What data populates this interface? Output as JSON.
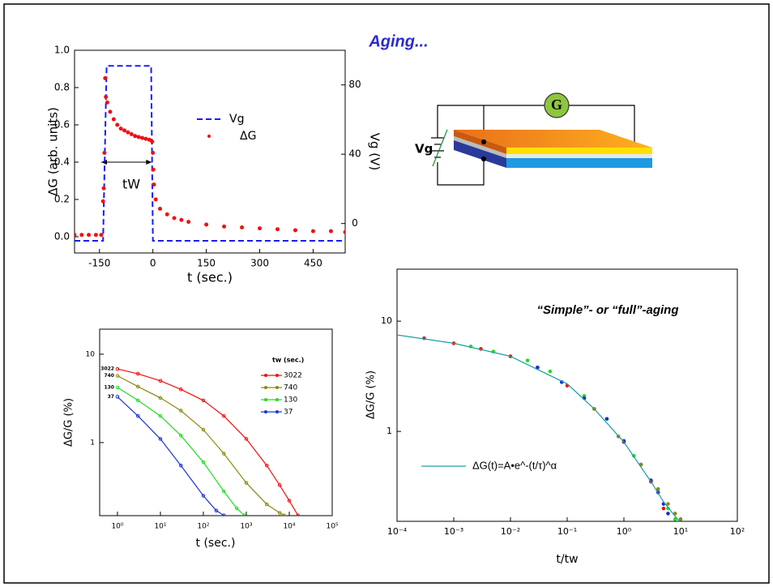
{
  "title": "Aging...",
  "diagram": {
    "meter": "G",
    "gate_label": "Vg"
  },
  "chart_data": [
    {
      "type": "line",
      "xlabel": "t (sec.)",
      "ylabel": "ΔG (arb. units)",
      "y2label": "Vg (V)",
      "xlim": [
        -220,
        540
      ],
      "xticks": [
        {
          "value": -150,
          "label": "-150"
        },
        0,
        150,
        300,
        450
      ],
      "ylim": [
        -0.087,
        1.0
      ],
      "yticks": [
        {
          "value": 0,
          "label": "0.0"
        },
        0.2,
        0.4,
        0.6,
        0.8,
        {
          "value": 1,
          "label": "1.0"
        }
      ],
      "y2lim": [
        -17,
        100
      ],
      "y2ticks": [
        0,
        40,
        80
      ],
      "annotation": "tW",
      "series": [
        {
          "name": "Vg",
          "color": "#1a1aff",
          "style": "dashed",
          "axis": "y2",
          "x": [
            -220,
            -140,
            -130,
            -5,
            0,
            540
          ],
          "values": [
            -10,
            -10,
            91,
            91,
            -10,
            -10
          ]
        },
        {
          "name": "ΔG",
          "color": "#ee1111",
          "style": "dots",
          "x": [
            -220,
            -200,
            -180,
            -160,
            -145,
            -140,
            -138,
            -136,
            -134,
            -132,
            -128,
            -120,
            -110,
            -100,
            -90,
            -80,
            -70,
            -60,
            -50,
            -40,
            -30,
            -20,
            -10,
            -2,
            0,
            1,
            3,
            8,
            20,
            40,
            60,
            80,
            100,
            150,
            200,
            250,
            300,
            350,
            400,
            450,
            500,
            540
          ],
          "values": [
            0.01,
            0.01,
            0.01,
            0.01,
            0.01,
            0.19,
            0.26,
            0.45,
            0.85,
            0.75,
            0.72,
            0.67,
            0.63,
            0.6,
            0.58,
            0.57,
            0.56,
            0.55,
            0.54,
            0.535,
            0.53,
            0.525,
            0.52,
            0.51,
            0.45,
            0.36,
            0.28,
            0.2,
            0.15,
            0.12,
            0.1,
            0.09,
            0.08,
            0.065,
            0.055,
            0.05,
            0.045,
            0.04,
            0.035,
            0.03,
            0.03,
            0.025
          ]
        }
      ]
    },
    {
      "type": "line",
      "xlabel": "t (sec.)",
      "ylabel": "ΔG/G (%)",
      "xscale": "log",
      "yscale": "log",
      "xlim": [
        0.385,
        100000
      ],
      "xticks": [
        {
          "value": 1,
          "label": "10⁰"
        },
        {
          "value": 10,
          "label": "10¹"
        },
        {
          "value": 100,
          "label": "10²"
        },
        {
          "value": 1000,
          "label": "10³"
        },
        {
          "value": 10000,
          "label": "10⁴"
        },
        {
          "value": 100000,
          "label": "10⁵"
        }
      ],
      "ylim": [
        0.149,
        19.2
      ],
      "yticks": [
        1,
        10
      ],
      "legend_title": "tw (sec.)",
      "series": [
        {
          "name": "3022",
          "color": "#ee1111",
          "style": "line-markers",
          "x": [
            1,
            3,
            10,
            30,
            100,
            300,
            1000,
            3000,
            6000,
            10000,
            16000
          ],
          "values": [
            6.8,
            6.0,
            5.0,
            4.0,
            3.0,
            2.0,
            1.1,
            0.55,
            0.33,
            0.22,
            0.15
          ]
        },
        {
          "name": "740",
          "color": "#8a8a10",
          "style": "line-markers",
          "x": [
            1,
            3,
            10,
            30,
            100,
            300,
            1000,
            3000,
            6000,
            7500
          ],
          "values": [
            5.7,
            4.3,
            3.2,
            2.3,
            1.4,
            0.75,
            0.35,
            0.2,
            0.16,
            0.15
          ]
        },
        {
          "name": "130",
          "color": "#22dd22",
          "style": "line-markers",
          "x": [
            1,
            3,
            10,
            30,
            100,
            300,
            600,
            900
          ],
          "values": [
            4.2,
            3.0,
            2.0,
            1.2,
            0.6,
            0.28,
            0.18,
            0.15
          ]
        },
        {
          "name": "37",
          "color": "#2233cc",
          "style": "line-markers",
          "x": [
            1,
            3,
            10,
            30,
            100,
            200,
            300
          ],
          "values": [
            3.3,
            2.0,
            1.1,
            0.55,
            0.25,
            0.17,
            0.15
          ]
        }
      ]
    },
    {
      "type": "scatter",
      "xlabel": "t/tw",
      "ylabel": "ΔG/G (%)",
      "xscale": "log",
      "yscale": "log",
      "xlim": [
        0.0001,
        100
      ],
      "xticks": [
        {
          "value": 0.0001,
          "label": "10⁻⁴"
        },
        {
          "value": 0.001,
          "label": "10⁻³"
        },
        {
          "value": 0.01,
          "label": "10⁻²"
        },
        {
          "value": 0.1,
          "label": "10⁻¹"
        },
        {
          "value": 1,
          "label": "10⁰"
        },
        {
          "value": 10,
          "label": "10¹"
        },
        {
          "value": 100,
          "label": "10²"
        }
      ],
      "ylim": [
        0.153,
        29.6
      ],
      "yticks": [
        1,
        10
      ],
      "annotation": "“Simple”- or “full”-aging",
      "series": [
        {
          "color": "#ee1111",
          "style": "points",
          "x": [
            0.0003,
            0.001,
            0.003,
            0.01,
            0.03,
            0.1,
            0.3,
            1,
            3,
            5
          ],
          "values": [
            7.0,
            6.3,
            5.6,
            4.8,
            3.8,
            2.6,
            1.6,
            0.8,
            0.35,
            0.2
          ]
        },
        {
          "color": "#22dd22",
          "style": "points",
          "x": [
            0.002,
            0.005,
            0.02,
            0.05,
            0.2,
            0.5,
            1.5,
            4,
            6,
            8
          ],
          "values": [
            5.9,
            5.3,
            4.4,
            3.5,
            2.1,
            1.3,
            0.6,
            0.3,
            0.2,
            0.16
          ]
        },
        {
          "color": "#1a2ad8",
          "style": "points",
          "x": [
            0.03,
            0.08,
            0.2,
            0.5,
            1,
            2,
            3,
            4,
            5,
            6
          ],
          "values": [
            3.8,
            2.8,
            2.0,
            1.3,
            0.82,
            0.5,
            0.36,
            0.28,
            0.22,
            0.18
          ]
        },
        {
          "color": "#8a8a10",
          "style": "points",
          "x": [
            0.3,
            0.8,
            2,
            4,
            6,
            8,
            10
          ],
          "values": [
            1.6,
            0.9,
            0.5,
            0.3,
            0.22,
            0.18,
            0.16
          ]
        },
        {
          "name": "ΔG(t)=A•e^-(t/τ)^α",
          "color": "#1aa0a0",
          "style": "line",
          "x": [
            0.0001,
            0.001,
            0.01,
            0.1,
            0.3,
            1,
            3,
            5,
            8,
            10
          ],
          "values": [
            7.5,
            6.3,
            4.8,
            2.7,
            1.6,
            0.8,
            0.35,
            0.23,
            0.17,
            0.15
          ]
        }
      ]
    }
  ]
}
